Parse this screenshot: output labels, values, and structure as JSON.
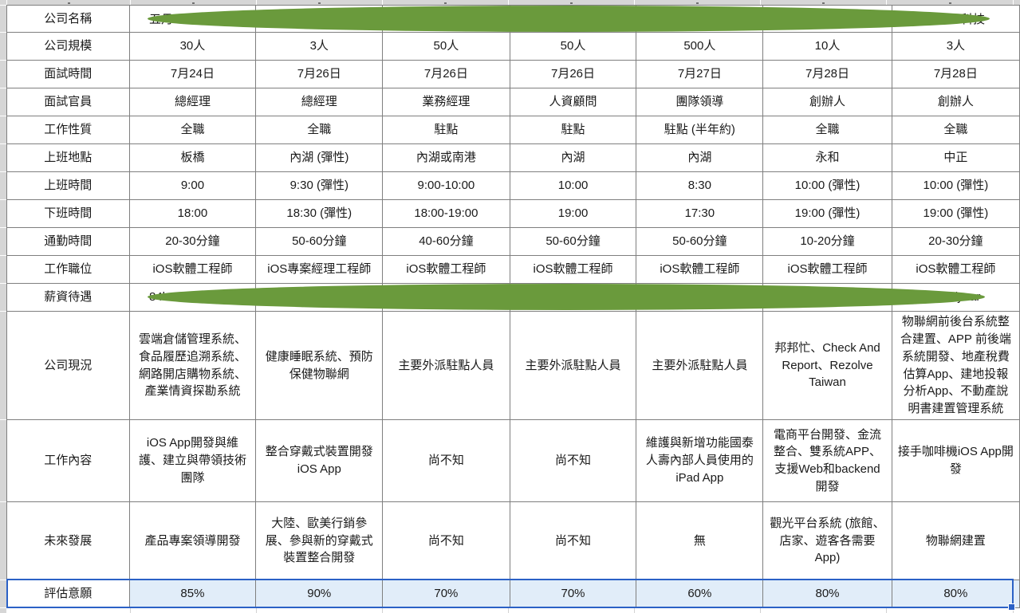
{
  "table": {
    "rows": [
      {
        "label": "公司名稱",
        "type": "redacted",
        "cells": [
          "",
          "",
          "",
          "",
          "",
          "",
          ""
        ]
      },
      {
        "label": "公司規模",
        "cells": [
          "30人",
          "3人",
          "50人",
          "50人",
          "500人",
          "10人",
          "3人"
        ]
      },
      {
        "label": "面試時間",
        "cells": [
          "7月24日",
          "7月26日",
          "7月26日",
          "7月26日",
          "7月27日",
          "7月28日",
          "7月28日"
        ]
      },
      {
        "label": "面試官員",
        "cells": [
          "總經理",
          "總經理",
          "業務經理",
          "人資顧問",
          "團隊領導",
          "創辦人",
          "創辦人"
        ]
      },
      {
        "label": "工作性質",
        "cells": [
          "全職",
          "全職",
          "駐點",
          "駐點",
          "駐點 (半年約)",
          "全職",
          "全職"
        ]
      },
      {
        "label": "上班地點",
        "cells": [
          "板橋",
          "內湖 (彈性)",
          "內湖或南港",
          "內湖",
          "內湖",
          "永和",
          "中正"
        ]
      },
      {
        "label": "上班時間",
        "cells": [
          "9:00",
          "9:30 (彈性)",
          "9:00-10:00",
          "10:00",
          "8:30",
          "10:00 (彈性)",
          "10:00 (彈性)"
        ]
      },
      {
        "label": "下班時間",
        "cells": [
          "18:00",
          "18:30 (彈性)",
          "18:00-19:00",
          "19:00",
          "17:30",
          "19:00 (彈性)",
          "19:00 (彈性)"
        ]
      },
      {
        "label": "通勤時間",
        "cells": [
          "20-30分鐘",
          "50-60分鐘",
          "40-60分鐘",
          "50-60分鐘",
          "50-60分鐘",
          "10-20分鐘",
          "20-30分鐘"
        ]
      },
      {
        "label": "工作職位",
        "cells": [
          "iOS軟體工程師",
          "iOS專案經理工程師",
          "iOS軟體工程師",
          "iOS軟體工程師",
          "iOS軟體工程師",
          "iOS軟體工程師",
          "iOS軟體工程師"
        ]
      },
      {
        "label": "薪資待遇",
        "type": "redacted",
        "cells": [
          "",
          "",
          "",
          "",
          "",
          "",
          ""
        ]
      },
      {
        "label": "公司現況",
        "cells": [
          "雲端倉儲管理系統、食品履歷追溯系統、網路開店購物系統、產業情資探勘系統",
          "健康睡眠系統、預防保健物聯網",
          "主要外派駐點人員",
          "主要外派駐點人員",
          "主要外派駐點人員",
          "邦邦忙、Check And Report、Rezolve Taiwan",
          "物聯網前後台系統整合建置、APP 前後端系統開發、地產稅費估算App、建地投報分析App、不動產說明書建置管理系統"
        ]
      },
      {
        "label": "工作內容",
        "cells": [
          "iOS App開發與維護、建立與帶領技術團隊",
          "整合穿戴式裝置開發 iOS App",
          "尚不知",
          "尚不知",
          "維護與新增功能國泰人壽內部人員使用的iPad App",
          "電商平台開發、金流整合、雙系統APP、支援Web和backend開發",
          "接手咖啡機iOS App開發"
        ]
      },
      {
        "label": "未來發展",
        "cells": [
          "產品專案領導開發",
          "大陸、歐美行銷參展、參與新的穿戴式裝置整合開發",
          "尚不知",
          "尚不知",
          "無",
          "觀光平台系統 (旅館、店家、遊客各需要App)",
          "物聯網建置"
        ]
      },
      {
        "label": "評估意願",
        "type": "selected",
        "cells": [
          "85%",
          "90%",
          "70%",
          "70%",
          "60%",
          "80%",
          "80%"
        ]
      }
    ]
  },
  "overlays": {
    "redaction_color": "#6a9a3c",
    "company_name_fragment_left": "五月",
    "company_name_fragment_right": "科技",
    "salary_fragment_left": "84k",
    "salary_fragment_right": "/year"
  },
  "selection": {
    "border_color": "#2b61c6",
    "fill_color": "#e1edf9"
  }
}
